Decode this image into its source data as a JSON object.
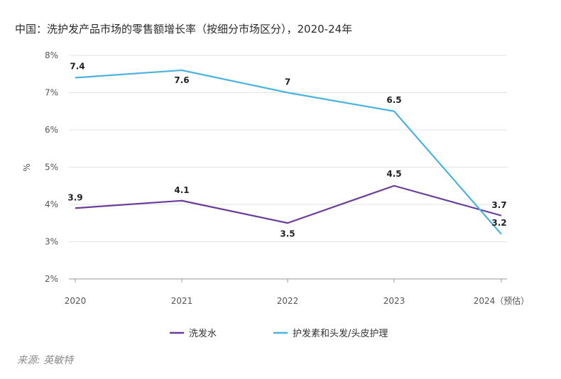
{
  "title": "中国：洗护发产品市场的零售额增长率（按细分市场区分），2020-24年",
  "source": "来源: 英敏特",
  "chart_data": {
    "type": "line",
    "categories": [
      "2020",
      "2021",
      "2022",
      "2023",
      "2024（预估）"
    ],
    "ylabel": "%",
    "ylim": [
      2,
      8
    ],
    "yticks": [
      "2%",
      "3%",
      "4%",
      "5%",
      "6%",
      "7%",
      "8%"
    ],
    "grid": true,
    "legend_position": "bottom",
    "series": [
      {
        "name": "洗发水",
        "color": "#6a3d9a",
        "values": [
          3.9,
          4.1,
          3.5,
          4.5,
          3.7
        ],
        "labels": [
          "3.9",
          "4.1",
          "3.5",
          "4.5",
          "3.7"
        ]
      },
      {
        "name": "护发素和头发/头皮护理",
        "color": "#4ab3e0",
        "values": [
          7.4,
          7.6,
          7.0,
          6.5,
          3.2
        ],
        "labels": [
          "7.4",
          "7.6",
          "7",
          "6.5",
          "3.2"
        ]
      }
    ]
  }
}
